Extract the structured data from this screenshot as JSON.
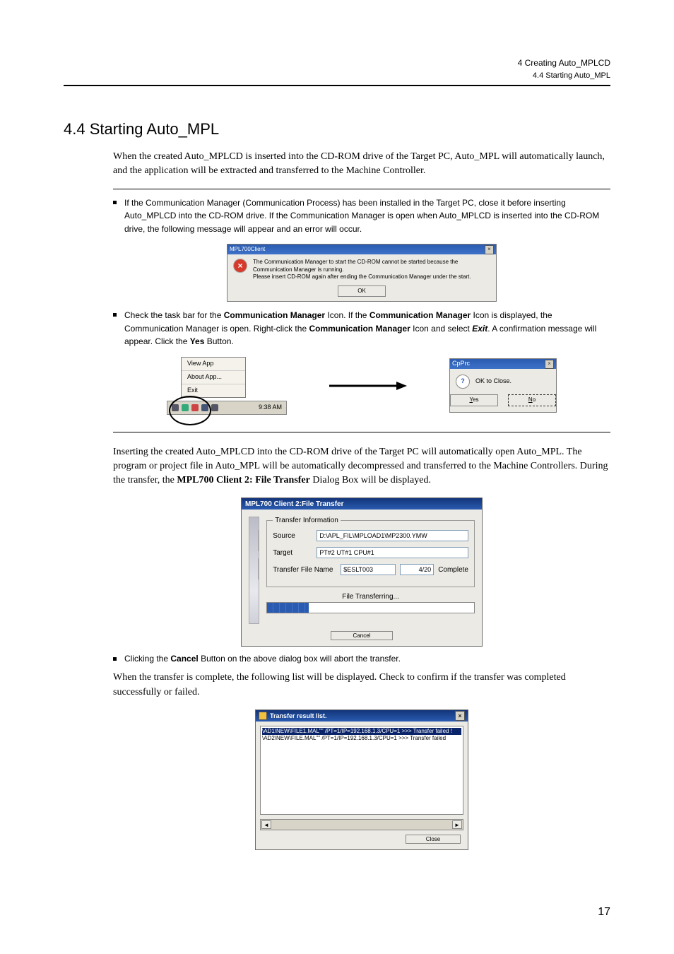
{
  "header": {
    "chapter": "4  Creating Auto_MPLCD",
    "section": "4.4  Starting Auto_MPL"
  },
  "section_title": "4.4  Starting Auto_MPL",
  "para_intro": "When the created Auto_MPLCD is inserted into the CD-ROM drive of the Target PC, Auto_MPL will automatically launch, and the application will be extracted and transferred to the Machine Controller.",
  "note1_bullet1": "If the Communication Manager (Communication Process) has been installed in the Target PC, close it before inserting Auto_MPLCD into the CD-ROM drive.  If the Communication Manager is open when Auto_MPLCD is inserted into the CD-ROM drive, the following message will appear and an error will occur.",
  "dialog_err": {
    "title": "MPL700Client",
    "msg_line1": "The Communication Manager to start the CD-ROM cannot be started because the Communication Manager is running.",
    "msg_line2": "Please insert CD-ROM again after ending the Communication Manager under the start.",
    "ok": "OK"
  },
  "note1_bullet2_pre": "Check the task bar for the ",
  "note1_bullet2_b1": "Communication Manager",
  "note1_bullet2_mid1": " Icon.  If the ",
  "note1_bullet2_b2": "Communication Manager",
  "note1_bullet2_mid2": " Icon is displayed, the Communication Manager is open.  Right-click the ",
  "note1_bullet2_b3": "Communication Manager",
  "note1_bullet2_mid3": " Icon and select ",
  "note1_bullet2_b4": "Exit",
  "note1_bullet2_mid4": ".  A confirmation message will appear.  Click the ",
  "note1_bullet2_b5": "Yes",
  "note1_bullet2_tail": " Button.",
  "taskbar_menu": {
    "view_app": "View App",
    "about_app": "About App...",
    "exit": "Exit",
    "time": "9:38 AM"
  },
  "cpprc_dialog": {
    "title": "CpPrc",
    "msg": "OK to Close.",
    "yes": "Yes",
    "no": "No"
  },
  "para_insert_pre": "Inserting the created Auto_MPLCD into the CD-ROM drive of the Target PC will automatically open Auto_MPL.  The program or project file in Auto_MPL will be automatically decompressed and transferred to the Machine Controllers.  During the transfer, the ",
  "para_insert_b": "MPL700 Client 2: File Transfer",
  "para_insert_tail": " Dialog Box will be displayed.",
  "file_transfer": {
    "title": "MPL700 Client 2:File Transfer",
    "group_label": "Transfer Information",
    "source_label": "Source",
    "source_value": "D:\\APL_FIL\\MPLOAD1\\MP2300.YMW",
    "target_label": "Target",
    "target_value": "PT#2  UT#1  CPU#1",
    "filename_label": "Transfer File Name",
    "filename_value": "$ESLT003",
    "progress_count": "4/20",
    "complete_label": "Complete",
    "status": "File Transferring...",
    "cancel": "Cancel",
    "progress_percent": 20
  },
  "cancel_note_pre": "Clicking the ",
  "cancel_note_b": "Cancel",
  "cancel_note_tail": " Button on the above dialog box will abort the transfer.",
  "para_complete": "When the transfer is complete, the following list will be displayed.  Check to confirm if the transfer was completed successfully or failed.",
  "result_list": {
    "title": "Transfer result list.",
    "row1": "\\AD1\\NEW\\FILE1.MAL\"\" /PT=1/IP=192.168.1.3/CPU=1  >>>  Transfer failed !",
    "row2": "\\AD2\\NEW\\FILE.MAL\"\" /PT=1/IP=192.168.1.3/CPU=1  >>>  Transfer failed",
    "close": "Close"
  },
  "page_number": "17"
}
